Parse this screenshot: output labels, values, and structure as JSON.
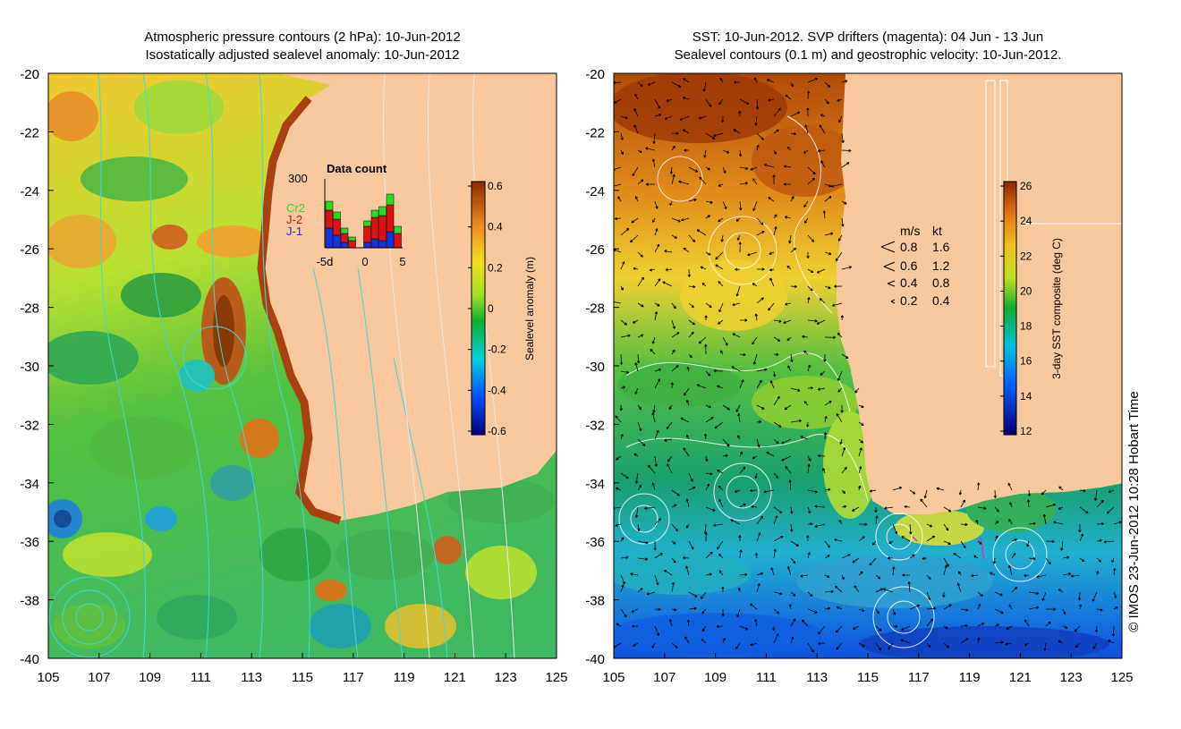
{
  "left_panel": {
    "title_line1": "Atmospheric pressure contours (2 hPa): 10-Jun-2012",
    "title_line2": "Isostatically adjusted sealevel anomaly: 10-Jun-2012",
    "colorbar_label": "Sealevel anomaly (m)",
    "colorbar_ticks": [
      "0.6",
      "0.4",
      "0.2",
      "0",
      "-0.2",
      "-0.4",
      "-0.6"
    ],
    "inset": {
      "title": "Data count",
      "y_max_label": "300",
      "x_ticks": [
        "-5d",
        "0",
        "5"
      ],
      "legend": [
        {
          "label": "Cr2",
          "color": "#22dd22"
        },
        {
          "label": "J-2",
          "color": "#dd1111"
        },
        {
          "label": "J-1",
          "color": "#1133dd"
        }
      ]
    }
  },
  "right_panel": {
    "title_line1": "SST: 10-Jun-2012. SVP drifters (magenta): 04 Jun - 13 Jun",
    "title_line2": "Sealevel contours (0.1 m) and geostrophic velocity: 10-Jun-2012.",
    "colorbar_label": "3-day SST composite (deg C)",
    "colorbar_ticks": [
      "26",
      "24",
      "22",
      "20",
      "18",
      "16",
      "14",
      "12"
    ],
    "velocity_legend": {
      "header_ms": "m/s",
      "header_kt": "kt",
      "rows": [
        {
          "ms": "0.8",
          "kt": "1.6"
        },
        {
          "ms": "0.6",
          "kt": "1.2"
        },
        {
          "ms": "0.4",
          "kt": "0.8"
        },
        {
          "ms": "0.2",
          "kt": "0.4"
        }
      ]
    }
  },
  "axes": {
    "y_ticks": [
      "-20",
      "-22",
      "-24",
      "-26",
      "-28",
      "-30",
      "-32",
      "-34",
      "-36",
      "-38",
      "-40"
    ],
    "x_ticks": [
      "105",
      "107",
      "109",
      "111",
      "113",
      "115",
      "117",
      "119",
      "121",
      "123",
      "125"
    ]
  },
  "credit": "© IMOS 23-Jun-2012 10:28 Hobart Time",
  "colors": {
    "land": "#f9c89c",
    "pressure_contour": "#40d8d8",
    "drifter": "#cc33cc"
  }
}
